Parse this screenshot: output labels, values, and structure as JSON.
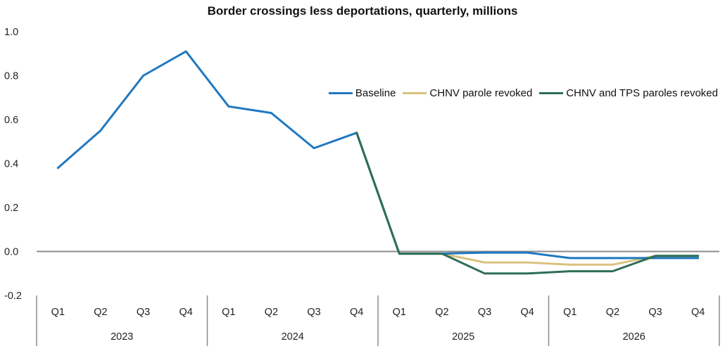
{
  "chart_data": {
    "type": "line",
    "title": "Border crossings less deportations, quarterly, millions",
    "xlabel": "",
    "ylabel": "",
    "ylim": [
      -0.2,
      1.0
    ],
    "yticks": [
      "1.0",
      "0.8",
      "0.6",
      "0.4",
      "0.2",
      "0.0",
      "-0.2"
    ],
    "ytick_values": [
      1.0,
      0.8,
      0.6,
      0.4,
      0.2,
      0.0,
      -0.2
    ],
    "categories": [
      "Q1",
      "Q2",
      "Q3",
      "Q4",
      "Q1",
      "Q2",
      "Q3",
      "Q4",
      "Q1",
      "Q2",
      "Q3",
      "Q4",
      "Q1",
      "Q2",
      "Q3",
      "Q4"
    ],
    "groups": [
      {
        "label": "2023",
        "count": 4
      },
      {
        "label": "2024",
        "count": 4
      },
      {
        "label": "2025",
        "count": 4
      },
      {
        "label": "2026",
        "count": 4
      }
    ],
    "series": [
      {
        "name": "Baseline",
        "color": "#1f78c1",
        "values": [
          0.38,
          0.55,
          0.8,
          0.91,
          0.66,
          0.63,
          0.47,
          0.54,
          -0.01,
          -0.01,
          -0.005,
          -0.005,
          -0.03,
          -0.03,
          -0.03,
          -0.03
        ]
      },
      {
        "name": "CHNV parole revoked",
        "color": "#d9c27e",
        "values": [
          null,
          null,
          null,
          null,
          null,
          null,
          null,
          0.54,
          -0.01,
          -0.01,
          -0.05,
          -0.05,
          -0.06,
          -0.06,
          -0.02,
          -0.02
        ]
      },
      {
        "name": "CHNV and TPS paroles revoked",
        "color": "#2e6e55",
        "values": [
          null,
          null,
          null,
          null,
          null,
          null,
          null,
          0.54,
          -0.01,
          -0.01,
          -0.1,
          -0.1,
          -0.09,
          -0.09,
          -0.02,
          -0.02
        ]
      }
    ],
    "legend_position": "top-right",
    "grid": false
  }
}
